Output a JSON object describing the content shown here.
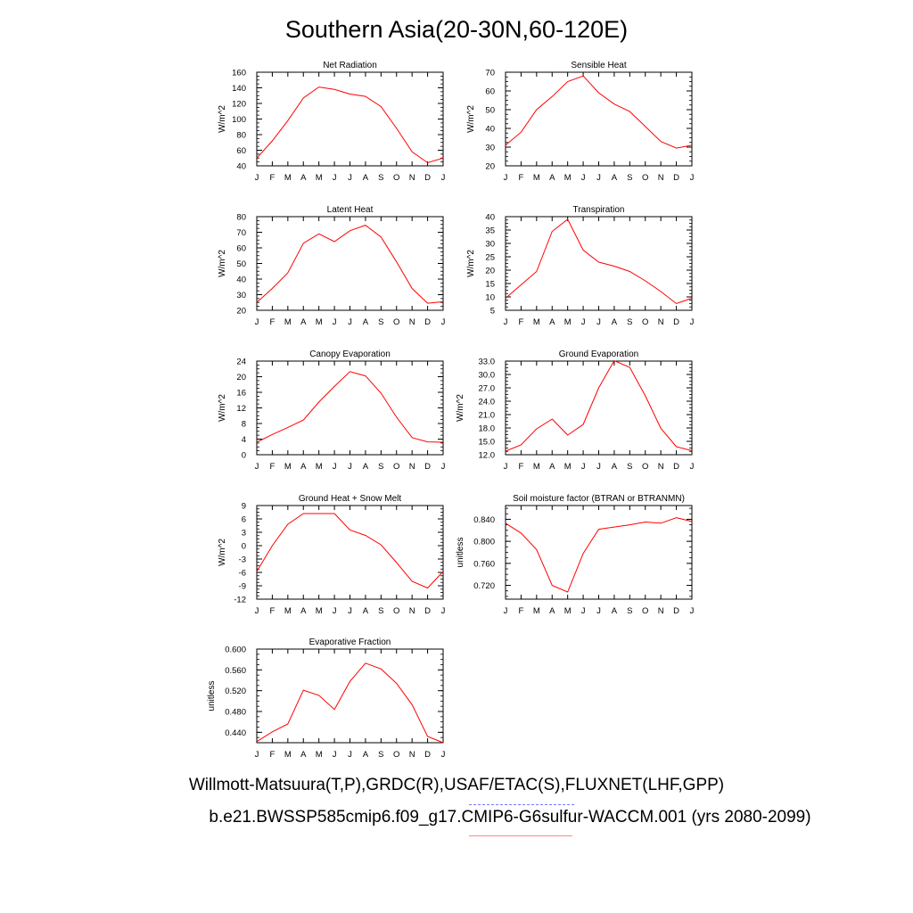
{
  "title": "Southern Asia(20-30N,60-120E)",
  "legend": {
    "observations": "Willmott-Matsuura(T,P),GRDC(R),USAF/ETAC(S),FLUXNET(LHF,GPP)",
    "model": "b.e21.BWSSP585cmip6.f09_g17.CMIP6-G6sulfur-WACCM.001 (yrs 2080-2099)",
    "observations_color": "#7777ff",
    "model_color": "#ff0000"
  },
  "chart_data": [
    {
      "type": "line",
      "title": "Net Radiation",
      "ylabel": "W/m^2",
      "categories": [
        "J",
        "F",
        "M",
        "A",
        "M",
        "J",
        "J",
        "A",
        "S",
        "O",
        "N",
        "D",
        "J"
      ],
      "values": [
        50,
        72,
        98,
        127,
        141,
        138,
        132,
        129,
        116,
        88,
        58,
        44,
        50
      ],
      "ylim": [
        40,
        160
      ],
      "yticks": [
        "40",
        "60",
        "80",
        "100",
        "120",
        "140",
        "160"
      ],
      "yticks_num": [
        40,
        60,
        80,
        100,
        120,
        140,
        160
      ]
    },
    {
      "type": "line",
      "title": "Sensible Heat",
      "ylabel": "W/m^2",
      "categories": [
        "J",
        "F",
        "M",
        "A",
        "M",
        "J",
        "J",
        "A",
        "S",
        "O",
        "N",
        "D",
        "J"
      ],
      "values": [
        31,
        38,
        50,
        57,
        65,
        68,
        59,
        53,
        49,
        41,
        33,
        29.5,
        31
      ],
      "ylim": [
        20,
        70
      ],
      "yticks": [
        "20",
        "30",
        "40",
        "50",
        "60",
        "70"
      ],
      "yticks_num": [
        20,
        30,
        40,
        50,
        60,
        70
      ]
    },
    {
      "type": "line",
      "title": "Latent Heat",
      "ylabel": "W/m^2",
      "categories": [
        "J",
        "F",
        "M",
        "A",
        "M",
        "J",
        "J",
        "A",
        "S",
        "O",
        "N",
        "D",
        "J"
      ],
      "values": [
        25,
        34,
        44,
        63,
        69,
        64,
        71,
        74.5,
        67,
        51,
        34,
        24.5,
        25.5
      ],
      "ylim": [
        20,
        80
      ],
      "yticks": [
        "20",
        "30",
        "40",
        "50",
        "60",
        "70",
        "80"
      ],
      "yticks_num": [
        20,
        30,
        40,
        50,
        60,
        70,
        80
      ]
    },
    {
      "type": "line",
      "title": "Transpiration",
      "ylabel": "W/m^2",
      "categories": [
        "J",
        "F",
        "M",
        "A",
        "M",
        "J",
        "J",
        "A",
        "S",
        "O",
        "N",
        "D",
        "J"
      ],
      "values": [
        9.5,
        14.5,
        19.5,
        34.5,
        39,
        27.5,
        23,
        21.5,
        19.5,
        16,
        12,
        7.5,
        9.5
      ],
      "ylim": [
        5,
        40
      ],
      "yticks": [
        "5",
        "10",
        "15",
        "20",
        "25",
        "30",
        "35",
        "40"
      ],
      "yticks_num": [
        5,
        10,
        15,
        20,
        25,
        30,
        35,
        40
      ]
    },
    {
      "type": "line",
      "title": "Canopy Evaporation",
      "ylabel": "W/m^2",
      "categories": [
        "J",
        "F",
        "M",
        "A",
        "M",
        "J",
        "J",
        "A",
        "S",
        "O",
        "N",
        "D",
        "J"
      ],
      "values": [
        3.2,
        5.2,
        7.0,
        8.9,
        13.5,
        17.5,
        21.3,
        20.2,
        15.8,
        9.6,
        4.4,
        3.3,
        3.2
      ],
      "ylim": [
        0,
        24
      ],
      "yticks": [
        "0",
        "4",
        "8",
        "12",
        "16",
        "20",
        "24"
      ],
      "yticks_num": [
        0,
        4,
        8,
        12,
        16,
        20,
        24
      ]
    },
    {
      "type": "line",
      "title": "Ground Evaporation",
      "ylabel": "W/m^2",
      "categories": [
        "J",
        "F",
        "M",
        "A",
        "M",
        "J",
        "J",
        "A",
        "S",
        "O",
        "N",
        "D",
        "J"
      ],
      "values": [
        12.8,
        14.2,
        17.8,
        20.0,
        16.4,
        18.8,
        27.0,
        33.1,
        31.6,
        25.2,
        17.9,
        13.8,
        12.9
      ],
      "ylim": [
        12,
        33
      ],
      "yticks": [
        "12.0",
        "15.0",
        "18.0",
        "21.0",
        "24.0",
        "27.0",
        "30.0",
        "33.0"
      ],
      "yticks_num": [
        12,
        15,
        18,
        21,
        24,
        27,
        30,
        33
      ]
    },
    {
      "type": "line",
      "title": "Ground Heat + Snow Melt",
      "ylabel": "W/m^2",
      "categories": [
        "J",
        "F",
        "M",
        "A",
        "M",
        "J",
        "J",
        "A",
        "S",
        "O",
        "N",
        "D",
        "J"
      ],
      "values": [
        -5.8,
        0.0,
        4.8,
        7.2,
        7.2,
        7.2,
        3.5,
        2.3,
        0.2,
        -3.8,
        -8.0,
        -9.5,
        -5.8
      ],
      "ylim": [
        -12,
        9
      ],
      "yticks": [
        "-12",
        "-9",
        "-6",
        "-3",
        "0",
        "3",
        "6",
        "9"
      ],
      "yticks_num": [
        -12,
        -9,
        -6,
        -3,
        0,
        3,
        6,
        9
      ]
    },
    {
      "type": "line",
      "title": "Soil moisture factor (BTRAN or BTRANMN)",
      "ylabel": "unitless",
      "categories": [
        "J",
        "F",
        "M",
        "A",
        "M",
        "J",
        "J",
        "A",
        "S",
        "O",
        "N",
        "D",
        "J"
      ],
      "values": [
        0.833,
        0.815,
        0.785,
        0.72,
        0.708,
        0.778,
        0.822,
        0.826,
        0.83,
        0.835,
        0.833,
        0.843,
        0.836
      ],
      "ylim": [
        0.695,
        0.865
      ],
      "yticks": [
        "0.720",
        "0.760",
        "0.800",
        "0.840"
      ],
      "yticks_num": [
        0.72,
        0.76,
        0.8,
        0.84
      ]
    },
    {
      "type": "line",
      "title": "Evaporative Fraction",
      "ylabel": "unitless",
      "categories": [
        "J",
        "F",
        "M",
        "A",
        "M",
        "J",
        "J",
        "A",
        "S",
        "O",
        "N",
        "D",
        "J"
      ],
      "values": [
        0.422,
        0.441,
        0.456,
        0.521,
        0.511,
        0.484,
        0.538,
        0.573,
        0.562,
        0.534,
        0.493,
        0.432,
        0.42
      ],
      "ylim": [
        0.42,
        0.6
      ],
      "yticks": [
        "0.440",
        "0.480",
        "0.520",
        "0.560",
        "0.600"
      ],
      "yticks_num": [
        0.44,
        0.48,
        0.52,
        0.56,
        0.6
      ]
    }
  ]
}
